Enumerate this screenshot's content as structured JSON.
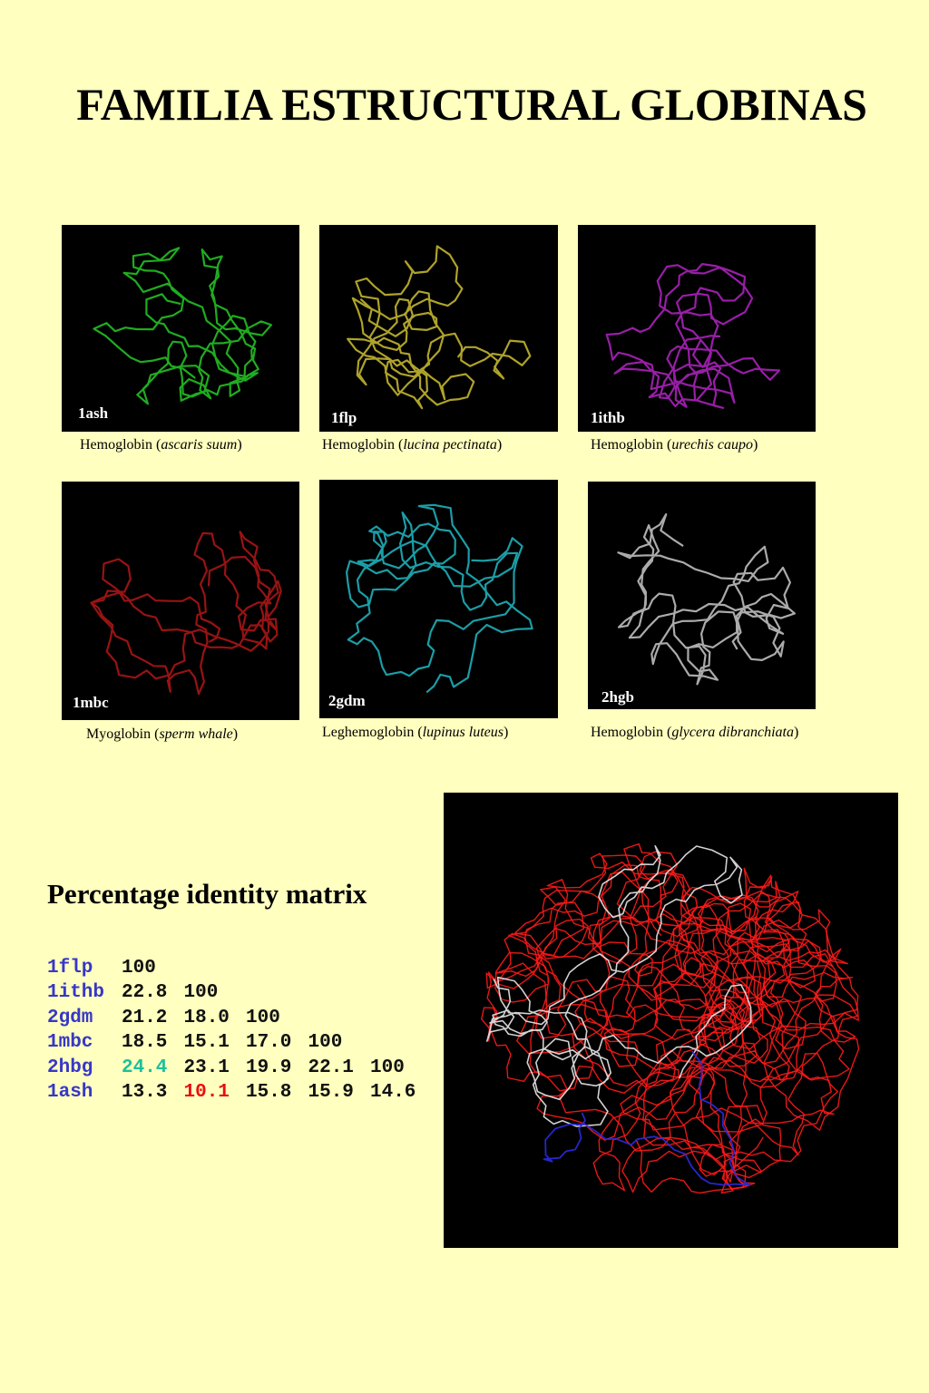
{
  "title": "FAMILIA ESTRUCTURAL GLOBINAS",
  "panels": [
    {
      "code": "1ash",
      "color": "#22b522",
      "caption_pre": "Hemoglobin (",
      "species": "ascaris suum",
      "caption_post": ")"
    },
    {
      "code": "1flp",
      "color": "#b8ac2c",
      "caption_pre": "Hemoglobin (",
      "species": "lucina pectinata",
      "caption_post": ")"
    },
    {
      "code": "1ithb",
      "color": "#a020b0",
      "caption_pre": "Hemoglobin (",
      "species": "urechis caupo",
      "caption_post": ")"
    },
    {
      "code": "1mbc",
      "color": "#a01414",
      "caption_pre": "Myoglobin (",
      "species": "sperm whale",
      "caption_post": ")"
    },
    {
      "code": "2gdm",
      "color": "#1ca6b0",
      "caption_pre": "Leghemoglobin (",
      "species": "lupinus luteus",
      "caption_post": ")"
    },
    {
      "code": "2hgb",
      "color": "#b4b4b4",
      "caption_pre": "Hemoglobin (",
      "species": "glycera dibranchiata",
      "caption_post": ")"
    }
  ],
  "superposition": {
    "main_color": "#ff1a1a",
    "accent_white": "#e8e8e8",
    "accent_blue": "#2a2ae0"
  },
  "matrix": {
    "title": "Percentage identity matrix",
    "name_color": "#3737c8",
    "highlight_max_color": "#1cc09a",
    "highlight_min_color": "#e81010",
    "rows": [
      {
        "name": "1flp",
        "values": [
          "100"
        ]
      },
      {
        "name": "1ithb",
        "values": [
          "22.8",
          "100"
        ]
      },
      {
        "name": "2gdm",
        "values": [
          "21.2",
          "18.0",
          "100"
        ]
      },
      {
        "name": "1mbc",
        "values": [
          "18.5",
          "15.1",
          "17.0",
          "100"
        ]
      },
      {
        "name": "2hbg",
        "values": [
          "24.4",
          "23.1",
          "19.9",
          "22.1",
          "100"
        ]
      },
      {
        "name": "1ash",
        "values": [
          "13.3",
          "10.1",
          "15.8",
          "15.9",
          "14.6"
        ]
      }
    ],
    "highlight_max_value": "24.4",
    "highlight_min_value": "10.1"
  }
}
